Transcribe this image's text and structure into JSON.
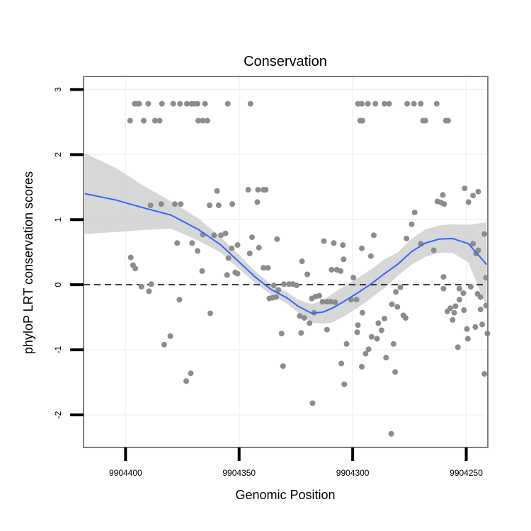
{
  "chart_data": {
    "type": "scatter",
    "title": "Conservation",
    "xlabel": "Genomic Position",
    "ylabel": "phyloP LRT conservation scores",
    "x_reversed": true,
    "xlim": [
      9904418.5,
      9904240.5
    ],
    "ylim": [
      -2.5,
      3.2
    ],
    "xticks": [
      9904400,
      9904350,
      9904300,
      9904250
    ],
    "xtick_labels": [
      "9904400",
      "9904350",
      "9904300",
      "9904250"
    ],
    "yticks": [
      -2,
      -1,
      0,
      1,
      2,
      3
    ],
    "ytick_labels": [
      "-2",
      "-1",
      "0",
      "1",
      "2",
      "3"
    ],
    "reference_line": {
      "y": 0,
      "style": "dashed",
      "color": "#000000"
    },
    "point_color": "#8c8c8c",
    "smooth_color": "#3366ff",
    "band_color": "#d3d3d3",
    "points": [
      [
        9904396.0,
        2.78
      ],
      [
        9904394.7,
        2.78
      ],
      [
        9904394.0,
        2.78
      ],
      [
        9904390.0,
        2.78
      ],
      [
        9904384.0,
        2.78
      ],
      [
        9904379.0,
        2.78
      ],
      [
        9904376.0,
        2.78
      ],
      [
        9904373.0,
        2.78
      ],
      [
        9904371.0,
        2.78
      ],
      [
        9904369.7,
        2.78
      ],
      [
        9904368.3,
        2.78
      ],
      [
        9904365.0,
        2.78
      ],
      [
        9904355.0,
        2.78
      ],
      [
        9904345.0,
        2.78
      ],
      [
        9904398.0,
        2.52
      ],
      [
        9904392.0,
        2.52
      ],
      [
        9904387.0,
        2.52
      ],
      [
        9904385.0,
        2.52
      ],
      [
        9904368.0,
        2.52
      ],
      [
        9904366.0,
        2.52
      ],
      [
        9904364.0,
        2.52
      ],
      [
        9904297.7,
        2.78
      ],
      [
        9904296.0,
        2.78
      ],
      [
        9904293.3,
        2.78
      ],
      [
        9904290.0,
        2.78
      ],
      [
        9904286.0,
        2.78
      ],
      [
        9904284.0,
        2.78
      ],
      [
        9904276.0,
        2.78
      ],
      [
        9904273.0,
        2.78
      ],
      [
        9904270.0,
        2.78
      ],
      [
        9904263.0,
        2.78
      ],
      [
        9904296.7,
        2.52
      ],
      [
        9904295.7,
        2.52
      ],
      [
        9904269.0,
        2.52
      ],
      [
        9904268.0,
        2.52
      ],
      [
        9904259.0,
        2.52
      ],
      [
        9904258.0,
        2.52
      ],
      [
        9904346.0,
        1.46
      ],
      [
        9904341.7,
        1.46
      ],
      [
        9904339.3,
        1.46
      ],
      [
        9904338.3,
        1.46
      ],
      [
        9904359.7,
        1.44
      ],
      [
        9904384.3,
        1.24
      ],
      [
        9904378.3,
        1.24
      ],
      [
        9904375.7,
        1.24
      ],
      [
        9904363.0,
        1.22
      ],
      [
        9904359.0,
        1.22
      ],
      [
        9904353.0,
        1.24
      ],
      [
        9904342.0,
        1.27
      ],
      [
        9904366.0,
        0.77
      ],
      [
        9904361.0,
        0.76
      ],
      [
        9904358.0,
        0.76
      ],
      [
        9904356.0,
        0.79
      ],
      [
        9904344.3,
        0.73
      ],
      [
        9904333.3,
        0.7
      ],
      [
        9904377.3,
        0.64
      ],
      [
        9904370.7,
        0.64
      ],
      [
        9904350.7,
        0.61
      ],
      [
        9904345.3,
        0.48
      ],
      [
        9904354.7,
        0.41
      ],
      [
        9904353.3,
        0.56
      ],
      [
        9904389.0,
        1.22
      ],
      [
        9904368.3,
        0.52
      ],
      [
        9904366.3,
        0.21
      ],
      [
        9904351.7,
        0.19
      ],
      [
        9904350.7,
        0.17
      ],
      [
        9904355.3,
        0.15
      ],
      [
        9904341.3,
        0.57
      ],
      [
        9904339.3,
        0.26
      ],
      [
        9904337.3,
        0.26
      ],
      [
        9904362.7,
        -0.44
      ],
      [
        9904376.3,
        -0.23
      ],
      [
        9904388.7,
        0.01
      ],
      [
        9904393.0,
        -0.03
      ],
      [
        9904397.7,
        0.42
      ],
      [
        9904396.7,
        0.3
      ],
      [
        9904395.7,
        0.25
      ],
      [
        9904389.7,
        -0.1
      ],
      [
        9904383.0,
        -0.92
      ],
      [
        9904380.3,
        -0.79
      ],
      [
        9904373.3,
        -1.48
      ],
      [
        9904371.3,
        -1.36
      ],
      [
        9904334.7,
        -0.01
      ],
      [
        9904332.7,
        -0.08
      ],
      [
        9904330.3,
        0.01
      ],
      [
        9904328.0,
        0.01
      ],
      [
        9904326.3,
        0.01
      ],
      [
        9904324.7,
        -0.01
      ],
      [
        9904333.7,
        -0.19
      ],
      [
        9904335.3,
        -0.2
      ],
      [
        9904336.7,
        -0.21
      ],
      [
        9904331.3,
        -0.75
      ],
      [
        9904330.7,
        -1.25
      ],
      [
        9904322.3,
        0.36
      ],
      [
        9904320.0,
        0.16
      ],
      [
        9904316.3,
        -0.18
      ],
      [
        9904314.7,
        -0.17
      ],
      [
        9904313.3,
        -0.26
      ],
      [
        9904311.3,
        -0.26
      ],
      [
        9904309.7,
        -0.26
      ],
      [
        9904307.7,
        -0.27
      ],
      [
        9904318.0,
        -0.21
      ],
      [
        9904317.0,
        -0.43
      ],
      [
        9904319.0,
        -0.59
      ],
      [
        9904321.3,
        -0.51
      ],
      [
        9904323.3,
        -0.48
      ],
      [
        9904322.7,
        -0.74
      ],
      [
        9904317.7,
        -1.82
      ],
      [
        9904312.7,
        0.67
      ],
      [
        9904308.3,
        0.64
      ],
      [
        9904304.3,
        0.61
      ],
      [
        9904304.0,
        0.39
      ],
      [
        9904307.0,
        0.23
      ],
      [
        9904309.3,
        0.23
      ],
      [
        9904305.3,
        0.21
      ],
      [
        9904299.7,
        0.11
      ],
      [
        9904296.0,
        0.56
      ],
      [
        9904292.0,
        0.44
      ],
      [
        9904290.7,
        0.76
      ],
      [
        9904311.3,
        -0.69
      ],
      [
        9904305.0,
        -1.21
      ],
      [
        9904303.7,
        -1.53
      ],
      [
        9904302.7,
        -0.91
      ],
      [
        9904298.0,
        -0.73
      ],
      [
        9904298.3,
        -0.23
      ],
      [
        9904300.7,
        -0.23
      ],
      [
        9904295.7,
        -0.43
      ],
      [
        9904297.7,
        -0.62
      ],
      [
        9904296.0,
        -1.26
      ],
      [
        9904294.3,
        -1.06
      ],
      [
        9904293.0,
        -0.99
      ],
      [
        9904291.7,
        -0.8
      ],
      [
        9904289.3,
        -0.83
      ],
      [
        9904287.3,
        -0.7
      ],
      [
        9904286.0,
        -0.52
      ],
      [
        9904288.7,
        -0.59
      ],
      [
        9904285.3,
        -1.12
      ],
      [
        9904282.7,
        -0.3
      ],
      [
        9904280.3,
        -0.34
      ],
      [
        9904279.0,
        -0.04
      ],
      [
        9904281.0,
        -0.11
      ],
      [
        9904277.7,
        -0.47
      ],
      [
        9904276.7,
        -0.51
      ],
      [
        9904282.0,
        -0.91
      ],
      [
        9904281.3,
        -1.34
      ],
      [
        9904283.0,
        -2.29
      ],
      [
        9904276.3,
        0.71
      ],
      [
        9904274.0,
        0.93
      ],
      [
        9904272.7,
        1.11
      ],
      [
        9904270.0,
        0.63
      ],
      [
        9904264.3,
        0.53
      ],
      [
        9904260.0,
        0.12
      ],
      [
        9904257.0,
        -0.36
      ],
      [
        9904255.3,
        -0.43
      ],
      [
        9904254.7,
        -0.33
      ],
      [
        9904253.0,
        -0.06
      ],
      [
        9904260.3,
        1.38
      ],
      [
        9904247.0,
        0.63
      ],
      [
        9904245.7,
        0.48
      ],
      [
        9904262.7,
        1.28
      ],
      [
        9904261.0,
        1.26
      ],
      [
        9904259.7,
        1.24
      ],
      [
        9904249.0,
        1.27
      ],
      [
        9904247.0,
        1.37
      ],
      [
        9904244.7,
        1.43
      ],
      [
        9904250.7,
        1.48
      ],
      [
        9904244.7,
        0.53
      ],
      [
        9904242.0,
        0.78
      ],
      [
        9904241.3,
        0.11
      ],
      [
        9904260.0,
        -0.06
      ],
      [
        9904253.0,
        -0.23
      ],
      [
        9904251.0,
        -0.39
      ],
      [
        9904249.7,
        -0.68
      ],
      [
        9904243.7,
        -0.38
      ],
      [
        9904251.3,
        -0.13
      ],
      [
        9904248.0,
        -0.03
      ],
      [
        9904245.0,
        -0.14
      ],
      [
        9904243.7,
        -0.19
      ],
      [
        9904241.3,
        -0.32
      ],
      [
        9904243.0,
        -0.61
      ],
      [
        9904240.7,
        -0.75
      ],
      [
        9904242.0,
        -1.37
      ],
      [
        9904253.7,
        -0.96
      ],
      [
        9904256.0,
        -0.54
      ],
      [
        9904258.3,
        -0.41
      ],
      [
        9904249.3,
        -0.83
      ],
      [
        9904246.0,
        -0.65
      ]
    ],
    "smooth": {
      "x": [
        9904418,
        9904404,
        9904393,
        9904380,
        9904368,
        9904358,
        9904350,
        9904343,
        9904336,
        9904329,
        9904324,
        9904318,
        9904313,
        9904309,
        9904304,
        9904298,
        9904292,
        9904286,
        9904280,
        9904274,
        9904268,
        9904262,
        9904256,
        9904249,
        9904241
      ],
      "y": [
        1.4,
        1.3,
        1.19,
        1.07,
        0.85,
        0.61,
        0.35,
        0.12,
        -0.07,
        -0.2,
        -0.33,
        -0.44,
        -0.42,
        -0.36,
        -0.26,
        -0.13,
        0.01,
        0.17,
        0.32,
        0.51,
        0.64,
        0.7,
        0.71,
        0.63,
        0.31
      ]
    },
    "band": {
      "lower": [
        0.78,
        0.81,
        0.84,
        0.86,
        0.68,
        0.49,
        0.24,
        0.03,
        -0.15,
        -0.29,
        -0.43,
        -0.58,
        -0.6,
        -0.58,
        -0.49,
        -0.36,
        -0.21,
        -0.05,
        0.14,
        0.31,
        0.43,
        0.49,
        0.49,
        0.34,
        -0.35
      ],
      "upper": [
        2.02,
        1.79,
        1.54,
        1.28,
        1.02,
        0.73,
        0.46,
        0.21,
        0.01,
        -0.11,
        -0.23,
        -0.3,
        -0.24,
        -0.14,
        -0.03,
        0.1,
        0.23,
        0.39,
        0.5,
        0.71,
        0.85,
        0.91,
        0.93,
        0.92,
        0.96
      ]
    }
  }
}
